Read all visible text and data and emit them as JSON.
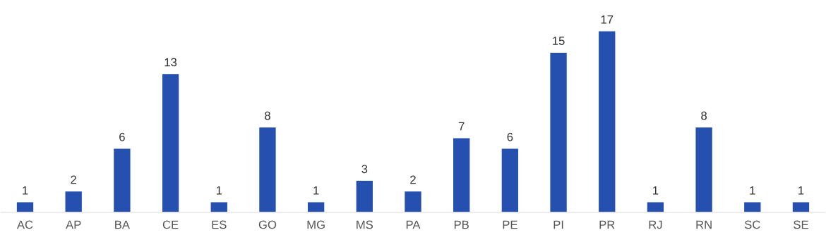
{
  "chart_data": {
    "type": "bar",
    "categories": [
      "AC",
      "AP",
      "BA",
      "CE",
      "ES",
      "GO",
      "MG",
      "MS",
      "PA",
      "PB",
      "PE",
      "PI",
      "PR",
      "RJ",
      "RN",
      "SC",
      "SE"
    ],
    "values": [
      1,
      2,
      6,
      13,
      1,
      8,
      1,
      3,
      2,
      7,
      6,
      15,
      17,
      1,
      8,
      1,
      1
    ],
    "color": "#2550b0",
    "data_labels": true,
    "grid": false,
    "legend": false
  }
}
